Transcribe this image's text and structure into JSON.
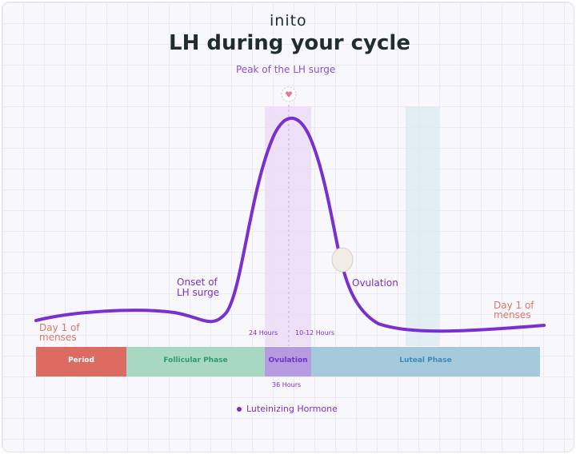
{
  "brand": "inito",
  "title": "LH during your cycle",
  "annotations": {
    "peak": "Peak of the LH surge",
    "onset": "Onset of LH surge",
    "ovulation": "Ovulation",
    "day1_left": "Day 1 of menses",
    "day1_right": "Day 1 of menses",
    "hours_24": "24 Hours",
    "hours_10_12": "10-12 Hours",
    "hours_36": "36 Hours"
  },
  "phases": [
    {
      "label": "Period",
      "color": "#dc6b62",
      "text_color": "#ffffff"
    },
    {
      "label": "Follicular Phase",
      "color": "#a8d8c2",
      "text_color": "#2e9a6a"
    },
    {
      "label": "Ovulation",
      "color": "#b79be0",
      "text_color": "#6a35c9"
    },
    {
      "label": "Luteal Phase",
      "color": "#a4cadb",
      "text_color": "#3f8ab5"
    }
  ],
  "legend": {
    "label": "Luteinizing Hormone",
    "color": "#7a2fd0"
  },
  "colors": {
    "curve": "#7a2fd0",
    "title": "#1f2d33",
    "peak_label": "#8a4fd6",
    "menses_label": "#d9786a"
  }
}
